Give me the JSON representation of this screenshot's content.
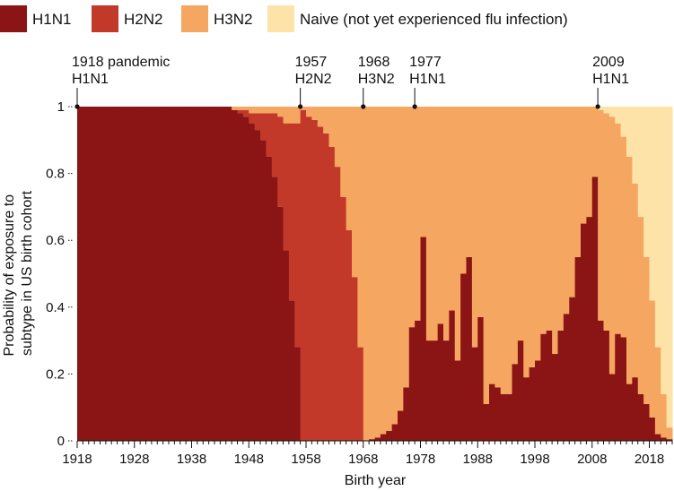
{
  "chart_data": {
    "type": "area",
    "xlabel": "Birth year",
    "ylabel": [
      "Probability of exposure to",
      "subtype in US birth cohort"
    ],
    "xlim": [
      1918,
      2022
    ],
    "ylim": [
      0,
      1
    ],
    "x_ticks": [
      "1918",
      "1928",
      "1938",
      "1948",
      "1958",
      "1968",
      "1978",
      "1988",
      "1998",
      "2008",
      "2018"
    ],
    "y_ticks": [
      "0",
      "0.2",
      "0.4",
      "0.6",
      "0.8",
      "1"
    ],
    "legend_position": "top",
    "stacking_order": [
      "H1N1",
      "H2N2",
      "H3N2",
      "Naive (not yet experienced flu infection)"
    ],
    "series": [
      {
        "name": "H1N1",
        "color": "#8b1414"
      },
      {
        "name": "H2N2",
        "color": "#c2392a"
      },
      {
        "name": "H3N2",
        "color": "#f5a761"
      },
      {
        "name": "Naive (not yet experienced flu infection)",
        "color": "#fde3a7"
      }
    ],
    "annotations": [
      {
        "year": 1918,
        "lines": [
          "1918 pandemic",
          "H1N1"
        ]
      },
      {
        "year": 1957,
        "lines": [
          "1957",
          "H2N2"
        ]
      },
      {
        "year": 1968,
        "lines": [
          "1968",
          "H3N2"
        ]
      },
      {
        "year": 1977,
        "lines": [
          "1977",
          "H1N1"
        ]
      },
      {
        "year": 2009,
        "lines": [
          "2009",
          "H1N1"
        ]
      }
    ],
    "years": [
      1918,
      1919,
      1920,
      1921,
      1922,
      1923,
      1924,
      1925,
      1926,
      1927,
      1928,
      1929,
      1930,
      1931,
      1932,
      1933,
      1934,
      1935,
      1936,
      1937,
      1938,
      1939,
      1940,
      1941,
      1942,
      1943,
      1944,
      1945,
      1946,
      1947,
      1948,
      1949,
      1950,
      1951,
      1952,
      1953,
      1954,
      1955,
      1956,
      1957,
      1958,
      1959,
      1960,
      1961,
      1962,
      1963,
      1964,
      1965,
      1966,
      1967,
      1968,
      1969,
      1970,
      1971,
      1972,
      1973,
      1974,
      1975,
      1976,
      1977,
      1978,
      1979,
      1980,
      1981,
      1982,
      1983,
      1984,
      1985,
      1986,
      1987,
      1988,
      1989,
      1990,
      1991,
      1992,
      1993,
      1994,
      1995,
      1996,
      1997,
      1998,
      1999,
      2000,
      2001,
      2002,
      2003,
      2004,
      2005,
      2006,
      2007,
      2008,
      2009,
      2010,
      2011,
      2012,
      2013,
      2014,
      2015,
      2016,
      2017,
      2018,
      2019,
      2020,
      2021
    ],
    "h1n1": [
      1,
      1,
      1,
      1,
      1,
      1,
      1,
      1,
      1,
      1,
      1,
      1,
      1,
      1,
      1,
      1,
      1,
      1,
      1,
      1,
      1,
      1,
      1,
      1,
      1,
      1,
      1,
      0.99,
      0.98,
      0.97,
      0.95,
      0.93,
      0.9,
      0.85,
      0.79,
      0.7,
      0.57,
      0.42,
      0.28,
      0,
      0,
      0,
      0,
      0,
      0,
      0,
      0,
      0,
      0,
      0,
      0,
      0.005,
      0.01,
      0.02,
      0.03,
      0.05,
      0.09,
      0.16,
      0.34,
      0.36,
      0.61,
      0.3,
      0.3,
      0.35,
      0.3,
      0.39,
      0.24,
      0.5,
      0.55,
      0.28,
      0.37,
      0.11,
      0.17,
      0.16,
      0.14,
      0.14,
      0.23,
      0.3,
      0.19,
      0.22,
      0.24,
      0.32,
      0.33,
      0.26,
      0.33,
      0.38,
      0.43,
      0.55,
      0.65,
      0.67,
      0.79,
      0.36,
      0.33,
      0.2,
      0.32,
      0.31,
      0.17,
      0.19,
      0.14,
      0.11,
      0.07,
      0.02,
      0.01,
      0.005
    ],
    "h2n2": [
      0,
      0,
      0,
      0,
      0,
      0,
      0,
      0,
      0,
      0,
      0,
      0,
      0,
      0,
      0,
      0,
      0,
      0,
      0,
      0,
      0,
      0,
      0,
      0,
      0,
      0,
      0,
      0,
      0.01,
      0.02,
      0.03,
      0.05,
      0.08,
      0.13,
      0.19,
      0.27,
      0.38,
      0.53,
      0.67,
      0.99,
      0.97,
      0.96,
      0.94,
      0.92,
      0.88,
      0.82,
      0.73,
      0.63,
      0.49,
      0.28,
      0,
      0,
      0,
      0,
      0,
      0,
      0,
      0,
      0,
      0,
      0,
      0,
      0,
      0,
      0,
      0,
      0,
      0,
      0,
      0,
      0,
      0,
      0,
      0,
      0,
      0,
      0,
      0,
      0,
      0,
      0,
      0,
      0,
      0,
      0,
      0,
      0,
      0,
      0,
      0,
      0,
      0,
      0,
      0,
      0,
      0,
      0,
      0,
      0,
      0,
      0,
      0,
      0,
      0
    ],
    "naive": [
      0,
      0,
      0,
      0,
      0,
      0,
      0,
      0,
      0,
      0,
      0,
      0,
      0,
      0,
      0,
      0,
      0,
      0,
      0,
      0,
      0,
      0,
      0,
      0,
      0,
      0,
      0,
      0,
      0,
      0,
      0,
      0,
      0,
      0,
      0,
      0,
      0,
      0,
      0,
      0,
      0,
      0,
      0,
      0,
      0,
      0,
      0,
      0,
      0,
      0,
      0,
      0,
      0,
      0,
      0,
      0,
      0,
      0,
      0,
      0,
      0,
      0,
      0,
      0,
      0,
      0,
      0,
      0,
      0,
      0,
      0,
      0,
      0,
      0,
      0,
      0,
      0,
      0,
      0,
      0,
      0,
      0,
      0,
      0,
      0,
      0,
      0,
      0,
      0,
      0,
      0,
      0.01,
      0.02,
      0.03,
      0.05,
      0.09,
      0.15,
      0.23,
      0.33,
      0.45,
      0.58,
      0.72,
      0.86,
      0.96
    ]
  }
}
